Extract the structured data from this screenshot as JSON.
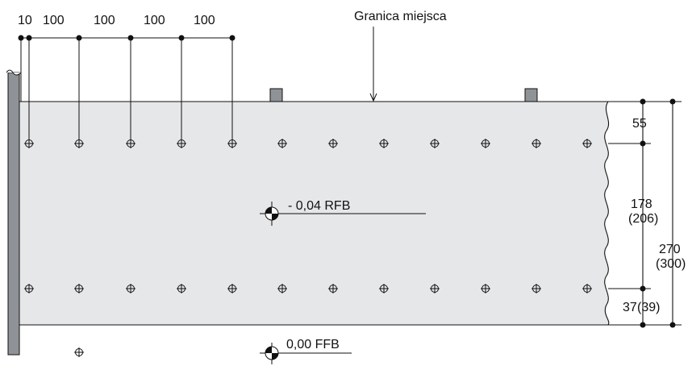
{
  "top_dims": [
    "10",
    "100",
    "100",
    "100",
    "100"
  ],
  "boundary_label": "Granica miejsca",
  "elev_top": "- 0,04 RFB",
  "elev_bottom": "0,00 FFB",
  "right_dims": {
    "d55": "55",
    "d178": "178",
    "d206": "(206)",
    "d270": "270",
    "d300": "(300)",
    "d37": "37",
    "d39": "(39)"
  },
  "colors": {
    "floor_fill": "#e6e7e9",
    "wall_fill": "#8f9296",
    "stroke": "#111111"
  }
}
